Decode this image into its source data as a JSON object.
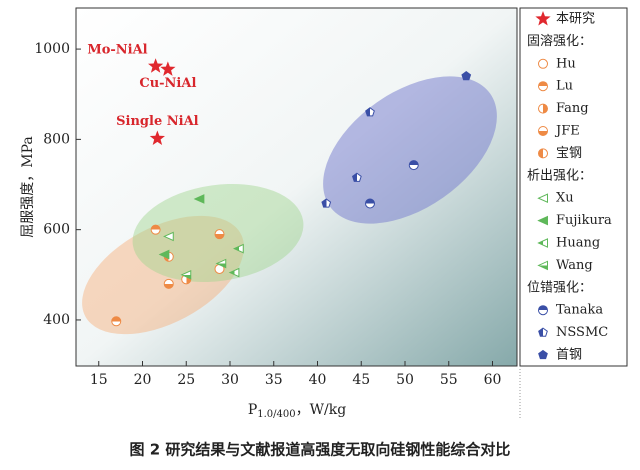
{
  "chart_data": {
    "type": "scatter",
    "ylabel": "屈服强度，MPa",
    "xlabel": "P",
    "xlabel_sub": "1.0/400",
    "xlabel_unit": "，W/kg",
    "caption": "图 2 研究结果与文献报道高强度无取向硅钢性能综合对比",
    "xlim": [
      12.4,
      62.8
    ],
    "ylim": [
      298,
      1091
    ],
    "xticks": [
      15,
      20,
      25,
      30,
      35,
      40,
      45,
      50,
      55,
      60
    ],
    "yticks": [
      400,
      600,
      800,
      1000
    ],
    "groups": [
      {
        "series": [
          {
            "name": "本研究",
            "color": "#e0282e",
            "marker": "star",
            "fill": "full",
            "x": [
              21.5,
              22.9,
              21.7
            ],
            "values": [
              962,
              955,
              802
            ],
            "point_labels": [
              "Mo-NiAl",
              "Cu-NiAl",
              "Single NiAl"
            ]
          }
        ]
      },
      {
        "title": "固溶强化：",
        "series": [
          {
            "name": "Hu",
            "color": "#ee8a45",
            "marker": "circle",
            "fill": "open",
            "x": [
              28.8
            ],
            "values": [
              513
            ]
          },
          {
            "name": "Lu",
            "color": "#ee8a45",
            "marker": "circle",
            "fill": "top",
            "x": [
              17,
              21.5
            ],
            "values": [
              397,
              600
            ]
          },
          {
            "name": "Fang",
            "color": "#ee8a45",
            "marker": "circle",
            "fill": "right",
            "x": [
              25
            ],
            "values": [
              490
            ]
          },
          {
            "name": "JFE",
            "color": "#ee8a45",
            "marker": "circle",
            "fill": "bottom",
            "x": [
              23,
              28.8
            ],
            "values": [
              480,
              590
            ]
          },
          {
            "name": "宝钢",
            "color": "#ee8a45",
            "marker": "circle",
            "fill": "left",
            "x": [
              23
            ],
            "values": [
              540
            ]
          }
        ]
      },
      {
        "title": "析出强化：",
        "series": [
          {
            "name": "Xu",
            "color": "#5fb85a",
            "marker": "triangle",
            "fill": "open",
            "x": [
              23
            ],
            "values": [
              585
            ]
          },
          {
            "name": "Fujikura",
            "color": "#5fb85a",
            "marker": "triangle",
            "fill": "full",
            "x": [
              22.5,
              26.5
            ],
            "values": [
              545,
              668
            ]
          },
          {
            "name": "Huang",
            "color": "#5fb85a",
            "marker": "triangle",
            "fill": "left",
            "x": [
              31,
              30.5
            ],
            "values": [
              558,
              505
            ]
          },
          {
            "name": "Wang",
            "color": "#5fb85a",
            "marker": "triangle",
            "fill": "bottom",
            "x": [
              25,
              29
            ],
            "values": [
              500,
              525
            ]
          }
        ]
      },
      {
        "title": "位错强化：",
        "series": [
          {
            "name": "Tanaka",
            "color": "#3a4fa6",
            "marker": "circle",
            "fill": "top",
            "x": [
              46,
              51
            ],
            "values": [
              658,
              743
            ]
          },
          {
            "name": "NSSMC",
            "color": "#3a4fa6",
            "marker": "pentagon",
            "fill": "left",
            "x": [
              41,
              44.5,
              46
            ],
            "values": [
              658,
              715,
              860
            ]
          },
          {
            "name": "首钢",
            "color": "#3a4fa6",
            "marker": "pentagon",
            "fill": "full",
            "x": [
              57
            ],
            "values": [
              940
            ]
          }
        ]
      }
    ]
  }
}
